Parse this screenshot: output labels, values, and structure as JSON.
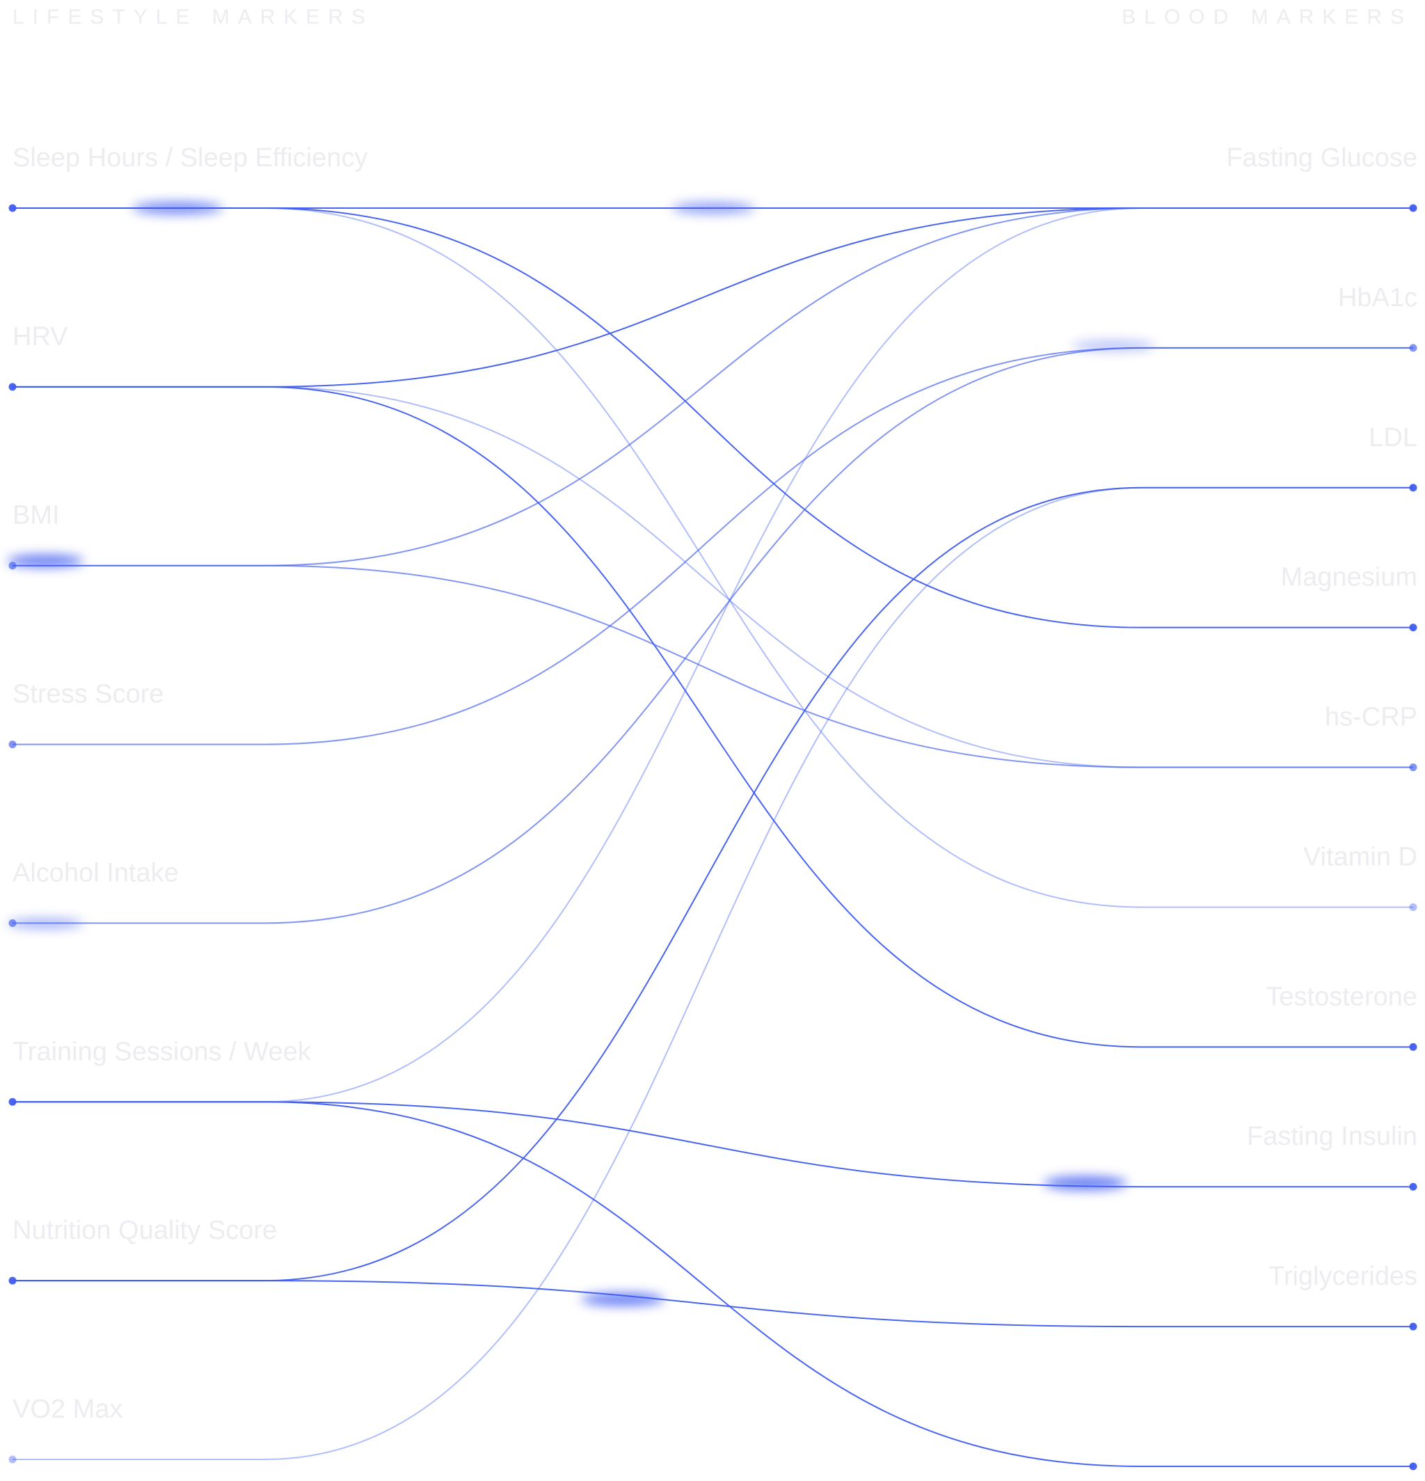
{
  "header": {
    "left": "LIFESTYLE MARKERS",
    "right": "BLOOD MARKERS"
  },
  "left_nodes": [
    {
      "label": "Sleep Hours / Sleep Efficiency"
    },
    {
      "label": "HRV"
    },
    {
      "label": "BMI"
    },
    {
      "label": "Stress Score"
    },
    {
      "label": "Alcohol Intake"
    },
    {
      "label": "Training Sessions / Week"
    },
    {
      "label": "Nutrition Quality Score"
    },
    {
      "label": "VO2 Max"
    }
  ],
  "right_nodes": [
    {
      "label": "Fasting Glucose"
    },
    {
      "label": "HbA1c"
    },
    {
      "label": "LDL"
    },
    {
      "label": "Magnesium"
    },
    {
      "label": "hs-CRP"
    },
    {
      "label": "Vitamin D"
    },
    {
      "label": "Testosterone"
    },
    {
      "label": "Fasting Insulin"
    },
    {
      "label": "Triglycerides"
    },
    {
      "label": null
    }
  ],
  "links": [
    {
      "from": 0,
      "to": 0,
      "style": "strong"
    },
    {
      "from": 0,
      "to": 3,
      "style": "strong"
    },
    {
      "from": 0,
      "to": 5,
      "style": "faint"
    },
    {
      "from": 1,
      "to": 0,
      "style": "strong"
    },
    {
      "from": 1,
      "to": 4,
      "style": "faint"
    },
    {
      "from": 1,
      "to": 6,
      "style": "strong"
    },
    {
      "from": 2,
      "to": 0,
      "style": "medium"
    },
    {
      "from": 2,
      "to": 4,
      "style": "medium"
    },
    {
      "from": 3,
      "to": 1,
      "style": "medium"
    },
    {
      "from": 4,
      "to": 1,
      "style": "medium"
    },
    {
      "from": 5,
      "to": 0,
      "style": "faint"
    },
    {
      "from": 5,
      "to": 7,
      "style": "strong"
    },
    {
      "from": 5,
      "to": 9,
      "style": "strong"
    },
    {
      "from": 6,
      "to": 2,
      "style": "strong"
    },
    {
      "from": 6,
      "to": 8,
      "style": "strong"
    },
    {
      "from": 7,
      "to": 2,
      "style": "faint"
    }
  ],
  "color": "#3f5cf0"
}
